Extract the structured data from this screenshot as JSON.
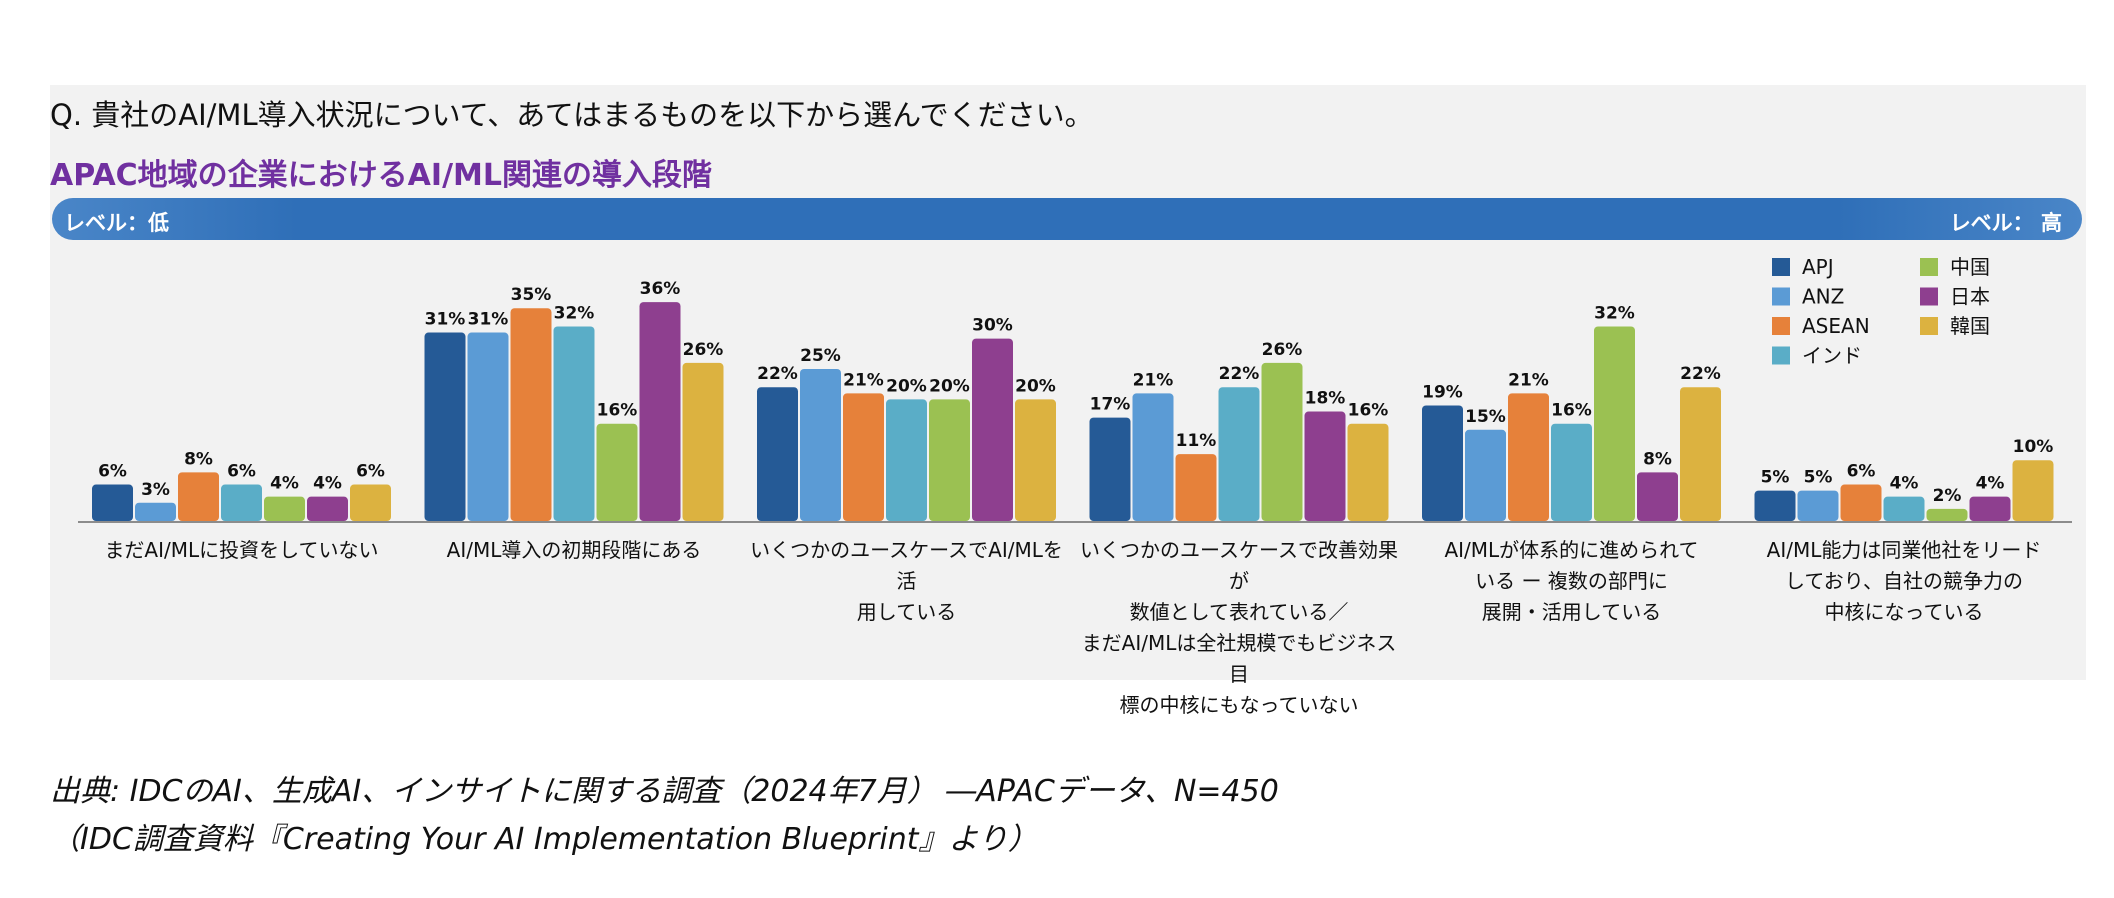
{
  "question": "Q. 貴社のAI/ML導入状況について、あてはまるものを以下から選んでください。",
  "level": {
    "low": "レベル：低",
    "high": "レベル： 高"
  },
  "source": {
    "line1": "出典: IDCのAI、生成AI、インサイトに関する調査（2024年7月） ―APACデータ、N=450",
    "line2": "（IDC調査資料『Creating Your AI Implementation Blueprint』より）"
  },
  "chart_data": {
    "type": "bar",
    "title": "APAC地域の企業におけるAI/ML関連の導入段階",
    "xlabel": "",
    "ylabel": "",
    "ylim": [
      0,
      40
    ],
    "grid": false,
    "legend": "top-right",
    "categories": [
      [
        "まだAI/MLに投資をしていない"
      ],
      [
        "AI/ML導入の初期段階にある"
      ],
      [
        "いくつかのユースケースでAI/MLを活",
        "用している"
      ],
      [
        "いくつかのユースケースで改善効果が",
        "数値として表れている／",
        "まだAI/MLは全社規模でもビジネス目",
        "標の中核にもなっていない"
      ],
      [
        "AI/MLが体系的に進められて",
        "いる ー 複数の部門に",
        "展開・活用している"
      ],
      [
        "AI/ML能力は同業他社をリード",
        "しており、自社の競争力の",
        "中核になっている"
      ]
    ],
    "series": [
      {
        "name": "APJ",
        "color": "#255a96",
        "values": [
          6,
          31,
          22,
          17,
          19,
          5
        ]
      },
      {
        "name": "ANZ",
        "color": "#5b9bd5",
        "values": [
          3,
          31,
          25,
          21,
          15,
          5
        ]
      },
      {
        "name": "ASEAN",
        "color": "#e6813a",
        "values": [
          8,
          35,
          21,
          11,
          21,
          6
        ]
      },
      {
        "name": "インド",
        "color": "#5aadc7",
        "values": [
          6,
          32,
          20,
          22,
          16,
          4
        ]
      },
      {
        "name": "中国",
        "color": "#9bc152",
        "values": [
          4,
          16,
          20,
          26,
          32,
          2
        ]
      },
      {
        "name": "日本",
        "color": "#8e3f8f",
        "values": [
          4,
          36,
          30,
          18,
          8,
          4
        ]
      },
      {
        "name": "韓国",
        "color": "#dcb240",
        "values": [
          6,
          26,
          20,
          16,
          22,
          10
        ]
      }
    ],
    "value_suffix": "%"
  }
}
